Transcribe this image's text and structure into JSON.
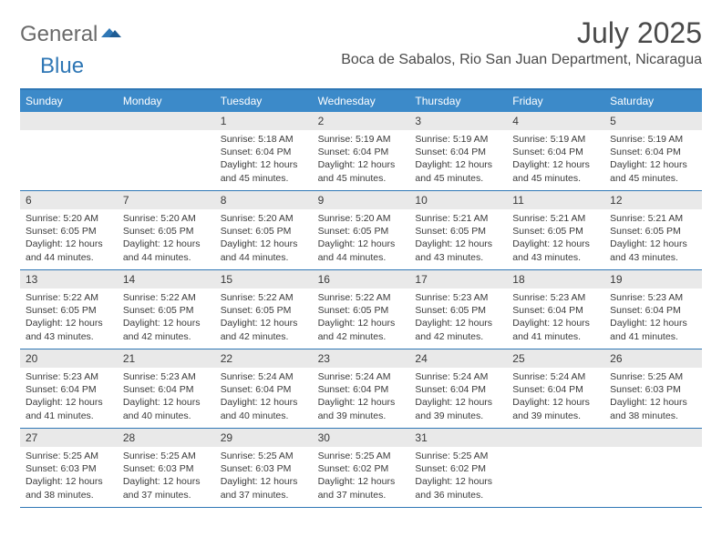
{
  "colors": {
    "brand_blue": "#2f77b5",
    "header_blue": "#3c8ac9",
    "day_band": "#e9e9e9",
    "text": "#3a3a3a",
    "logo_gray": "#6a6a6a",
    "white": "#ffffff"
  },
  "typography": {
    "title_size_pt": 24,
    "location_size_pt": 12,
    "dow_size_pt": 9,
    "cell_text_size_pt": 8,
    "font_family": "Arial"
  },
  "logo": {
    "text1": "General",
    "text2": "Blue"
  },
  "title": "July 2025",
  "location": "Boca de Sabalos, Rio San Juan Department, Nicaragua",
  "dow": [
    "Sunday",
    "Monday",
    "Tuesday",
    "Wednesday",
    "Thursday",
    "Friday",
    "Saturday"
  ],
  "calendar": {
    "type": "calendar",
    "first_weekday_index": 2,
    "weeks": [
      [
        null,
        null,
        {
          "n": "1",
          "sunrise": "5:18 AM",
          "sunset": "6:04 PM",
          "daylight": "12 hours and 45 minutes."
        },
        {
          "n": "2",
          "sunrise": "5:19 AM",
          "sunset": "6:04 PM",
          "daylight": "12 hours and 45 minutes."
        },
        {
          "n": "3",
          "sunrise": "5:19 AM",
          "sunset": "6:04 PM",
          "daylight": "12 hours and 45 minutes."
        },
        {
          "n": "4",
          "sunrise": "5:19 AM",
          "sunset": "6:04 PM",
          "daylight": "12 hours and 45 minutes."
        },
        {
          "n": "5",
          "sunrise": "5:19 AM",
          "sunset": "6:04 PM",
          "daylight": "12 hours and 45 minutes."
        }
      ],
      [
        {
          "n": "6",
          "sunrise": "5:20 AM",
          "sunset": "6:05 PM",
          "daylight": "12 hours and 44 minutes."
        },
        {
          "n": "7",
          "sunrise": "5:20 AM",
          "sunset": "6:05 PM",
          "daylight": "12 hours and 44 minutes."
        },
        {
          "n": "8",
          "sunrise": "5:20 AM",
          "sunset": "6:05 PM",
          "daylight": "12 hours and 44 minutes."
        },
        {
          "n": "9",
          "sunrise": "5:20 AM",
          "sunset": "6:05 PM",
          "daylight": "12 hours and 44 minutes."
        },
        {
          "n": "10",
          "sunrise": "5:21 AM",
          "sunset": "6:05 PM",
          "daylight": "12 hours and 43 minutes."
        },
        {
          "n": "11",
          "sunrise": "5:21 AM",
          "sunset": "6:05 PM",
          "daylight": "12 hours and 43 minutes."
        },
        {
          "n": "12",
          "sunrise": "5:21 AM",
          "sunset": "6:05 PM",
          "daylight": "12 hours and 43 minutes."
        }
      ],
      [
        {
          "n": "13",
          "sunrise": "5:22 AM",
          "sunset": "6:05 PM",
          "daylight": "12 hours and 43 minutes."
        },
        {
          "n": "14",
          "sunrise": "5:22 AM",
          "sunset": "6:05 PM",
          "daylight": "12 hours and 42 minutes."
        },
        {
          "n": "15",
          "sunrise": "5:22 AM",
          "sunset": "6:05 PM",
          "daylight": "12 hours and 42 minutes."
        },
        {
          "n": "16",
          "sunrise": "5:22 AM",
          "sunset": "6:05 PM",
          "daylight": "12 hours and 42 minutes."
        },
        {
          "n": "17",
          "sunrise": "5:23 AM",
          "sunset": "6:05 PM",
          "daylight": "12 hours and 42 minutes."
        },
        {
          "n": "18",
          "sunrise": "5:23 AM",
          "sunset": "6:04 PM",
          "daylight": "12 hours and 41 minutes."
        },
        {
          "n": "19",
          "sunrise": "5:23 AM",
          "sunset": "6:04 PM",
          "daylight": "12 hours and 41 minutes."
        }
      ],
      [
        {
          "n": "20",
          "sunrise": "5:23 AM",
          "sunset": "6:04 PM",
          "daylight": "12 hours and 41 minutes."
        },
        {
          "n": "21",
          "sunrise": "5:23 AM",
          "sunset": "6:04 PM",
          "daylight": "12 hours and 40 minutes."
        },
        {
          "n": "22",
          "sunrise": "5:24 AM",
          "sunset": "6:04 PM",
          "daylight": "12 hours and 40 minutes."
        },
        {
          "n": "23",
          "sunrise": "5:24 AM",
          "sunset": "6:04 PM",
          "daylight": "12 hours and 39 minutes."
        },
        {
          "n": "24",
          "sunrise": "5:24 AM",
          "sunset": "6:04 PM",
          "daylight": "12 hours and 39 minutes."
        },
        {
          "n": "25",
          "sunrise": "5:24 AM",
          "sunset": "6:04 PM",
          "daylight": "12 hours and 39 minutes."
        },
        {
          "n": "26",
          "sunrise": "5:25 AM",
          "sunset": "6:03 PM",
          "daylight": "12 hours and 38 minutes."
        }
      ],
      [
        {
          "n": "27",
          "sunrise": "5:25 AM",
          "sunset": "6:03 PM",
          "daylight": "12 hours and 38 minutes."
        },
        {
          "n": "28",
          "sunrise": "5:25 AM",
          "sunset": "6:03 PM",
          "daylight": "12 hours and 37 minutes."
        },
        {
          "n": "29",
          "sunrise": "5:25 AM",
          "sunset": "6:03 PM",
          "daylight": "12 hours and 37 minutes."
        },
        {
          "n": "30",
          "sunrise": "5:25 AM",
          "sunset": "6:02 PM",
          "daylight": "12 hours and 37 minutes."
        },
        {
          "n": "31",
          "sunrise": "5:25 AM",
          "sunset": "6:02 PM",
          "daylight": "12 hours and 36 minutes."
        },
        null,
        null
      ]
    ],
    "labels": {
      "sunrise": "Sunrise: ",
      "sunset": "Sunset: ",
      "daylight": "Daylight: "
    }
  }
}
